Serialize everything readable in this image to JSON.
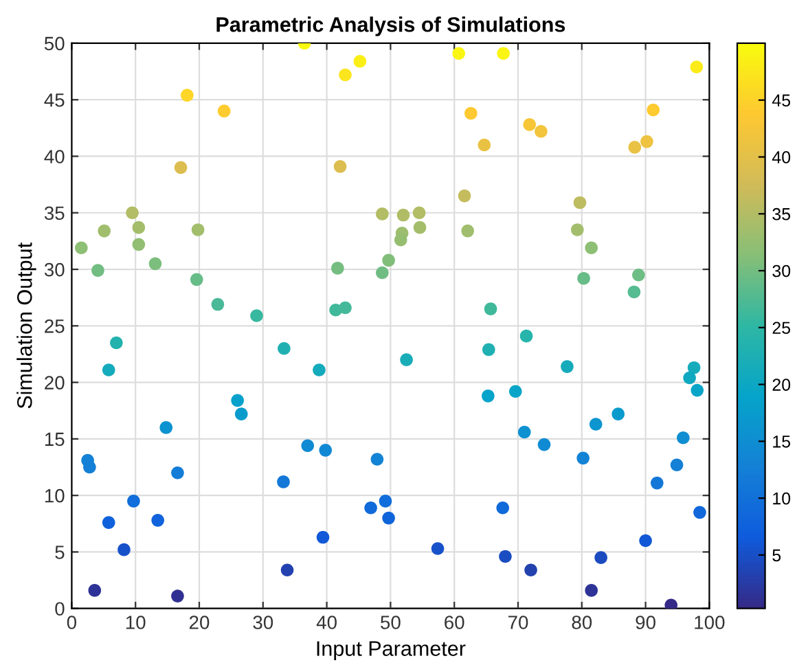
{
  "chart_data": {
    "type": "scatter",
    "title": "Parametric Analysis of Simulations",
    "xlabel": "Input Parameter",
    "ylabel": "Simulation Output",
    "x": [
      36.5,
      45.2,
      42.9,
      18.1,
      23.9,
      17.1,
      42.1,
      9.5,
      48.7,
      5.1,
      10.5,
      19.8,
      1.5,
      10.5,
      13.1,
      4.1,
      41.7,
      19.6,
      22.9,
      29.0,
      41.4,
      42.9,
      7.0,
      33.3,
      5.8,
      38.8,
      26.0,
      26.6,
      14.8,
      2.5,
      2.8,
      16.6,
      37.0,
      39.8,
      47.9,
      33.2,
      9.7,
      5.8,
      13.5,
      46.9,
      49.2,
      8.2,
      39.4,
      33.8,
      3.6,
      16.6,
      60.7,
      67.7,
      98.0,
      62.6,
      64.7,
      71.8,
      73.6,
      88.3,
      90.2,
      91.2,
      61.6,
      79.7,
      52.0,
      54.5,
      54.6,
      51.8,
      51.6,
      62.1,
      79.3,
      81.5,
      49.7,
      48.7,
      80.3,
      88.9,
      88.2,
      65.7,
      71.3,
      65.4,
      52.5,
      77.7,
      97.6,
      96.9,
      98.1,
      65.3,
      69.6,
      85.7,
      82.2,
      71.0,
      74.1,
      80.2,
      95.9,
      94.9,
      91.8,
      67.6,
      98.5,
      49.7,
      57.4,
      68.0,
      83.0,
      90.0,
      72.0,
      81.5,
      94.0
    ],
    "values": [
      50.0,
      48.4,
      47.2,
      45.4,
      44.0,
      39.0,
      39.1,
      35.0,
      34.9,
      33.4,
      33.7,
      33.5,
      31.9,
      32.2,
      30.5,
      29.9,
      30.1,
      29.1,
      26.9,
      25.9,
      26.4,
      26.6,
      23.5,
      23.0,
      21.1,
      21.1,
      18.4,
      17.2,
      16.0,
      13.1,
      12.5,
      12.0,
      14.4,
      14.0,
      13.2,
      11.2,
      9.5,
      7.6,
      7.8,
      8.9,
      9.5,
      5.2,
      6.3,
      3.4,
      1.6,
      1.1,
      49.1,
      49.1,
      47.9,
      43.8,
      41.0,
      42.8,
      42.2,
      40.8,
      41.3,
      44.1,
      36.5,
      35.9,
      34.8,
      35.0,
      33.7,
      33.2,
      32.6,
      33.4,
      33.5,
      31.9,
      30.8,
      29.7,
      29.2,
      29.5,
      28.0,
      26.5,
      24.1,
      22.9,
      22.0,
      21.4,
      21.3,
      20.4,
      19.3,
      18.8,
      19.2,
      17.2,
      16.3,
      15.6,
      14.5,
      13.3,
      15.1,
      12.7,
      11.1,
      8.9,
      8.5,
      8.0,
      5.3,
      4.6,
      4.5,
      6.0,
      3.4,
      1.6,
      0.3
    ],
    "cvalues": [
      50.0,
      48.4,
      47.2,
      45.4,
      44.0,
      39.0,
      39.1,
      35.0,
      34.9,
      33.4,
      33.7,
      33.5,
      31.9,
      32.2,
      30.5,
      29.9,
      30.1,
      29.1,
      26.9,
      25.9,
      26.4,
      26.6,
      23.5,
      23.0,
      21.1,
      21.1,
      18.4,
      17.2,
      16.0,
      13.1,
      12.5,
      12.0,
      14.4,
      14.0,
      13.2,
      11.2,
      9.5,
      7.6,
      7.8,
      8.9,
      9.5,
      5.2,
      6.3,
      3.4,
      1.6,
      1.1,
      49.1,
      49.1,
      47.9,
      43.8,
      41.0,
      42.8,
      42.2,
      40.8,
      41.3,
      44.1,
      36.5,
      35.9,
      34.8,
      35.0,
      33.7,
      33.2,
      32.6,
      33.4,
      33.5,
      31.9,
      30.8,
      29.7,
      29.2,
      29.5,
      28.0,
      26.5,
      24.1,
      22.9,
      22.0,
      21.4,
      21.3,
      20.4,
      19.3,
      18.8,
      19.2,
      17.2,
      16.3,
      15.6,
      14.5,
      13.3,
      15.1,
      12.7,
      11.1,
      8.9,
      8.5,
      8.0,
      5.3,
      4.6,
      4.5,
      6.0,
      3.4,
      1.6,
      0.3
    ],
    "xlim": [
      0,
      100
    ],
    "xticks": [
      0,
      10,
      20,
      30,
      40,
      50,
      60,
      70,
      80,
      90,
      100
    ],
    "ylim": [
      0,
      50
    ],
    "yticks": [
      0,
      5,
      10,
      15,
      20,
      25,
      30,
      35,
      40,
      45,
      50
    ],
    "clim": [
      0.3,
      50
    ],
    "cticks": [
      5,
      10,
      15,
      20,
      25,
      30,
      35,
      40,
      45
    ],
    "grid": true,
    "marker": "circle",
    "legend": false
  }
}
